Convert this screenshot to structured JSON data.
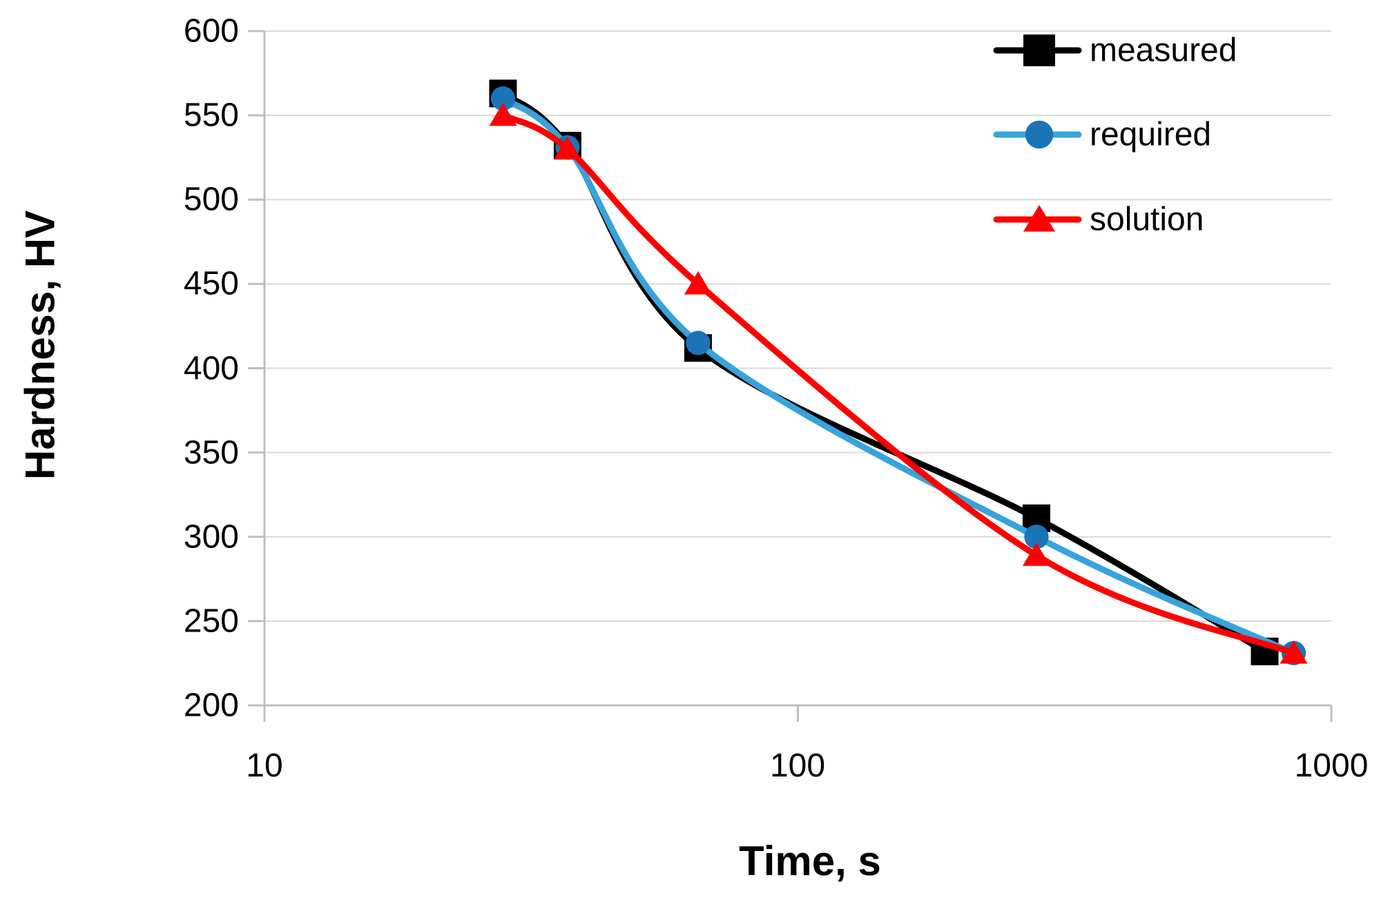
{
  "chart_data": {
    "type": "line",
    "title": "",
    "xlabel": "Time, s",
    "ylabel": "Hardness, HV",
    "x_scale": "log",
    "xlim": [
      10,
      1000
    ],
    "ylim": [
      200,
      600
    ],
    "x_ticks": [
      10,
      100,
      1000
    ],
    "x_tick_labels": [
      "10",
      "100",
      "1000"
    ],
    "y_ticks": [
      600,
      550,
      500,
      450,
      400,
      350,
      300,
      250,
      200
    ],
    "y_tick_labels": [
      "600",
      "550",
      "500",
      "450",
      "400",
      "350",
      "300",
      "250",
      "200"
    ],
    "grid": "horizontal-only",
    "legend_position": "top-right",
    "background_color": "#ffffff",
    "gridline_color": "#d9d9d9",
    "axis_color": "#bfbfbf",
    "series": [
      {
        "name": "measured",
        "marker": "square",
        "line_color": "#000000",
        "marker_color": "#000000",
        "points": [
          [
            28,
            563
          ],
          [
            37,
            532
          ],
          [
            65,
            412
          ],
          [
            280,
            311
          ],
          [
            750,
            232
          ]
        ]
      },
      {
        "name": "required",
        "marker": "circle",
        "line_color": "#38a3db",
        "marker_color": "#1b74b8",
        "points": [
          [
            28,
            560
          ],
          [
            37,
            531
          ],
          [
            65,
            415
          ],
          [
            280,
            300
          ],
          [
            850,
            231
          ]
        ]
      },
      {
        "name": "solution",
        "marker": "triangle",
        "line_color": "#fe0000",
        "marker_color": "#fe0000",
        "points": [
          [
            28,
            550
          ],
          [
            37,
            530
          ],
          [
            65,
            450
          ],
          [
            280,
            289
          ],
          [
            850,
            231
          ]
        ]
      }
    ]
  }
}
